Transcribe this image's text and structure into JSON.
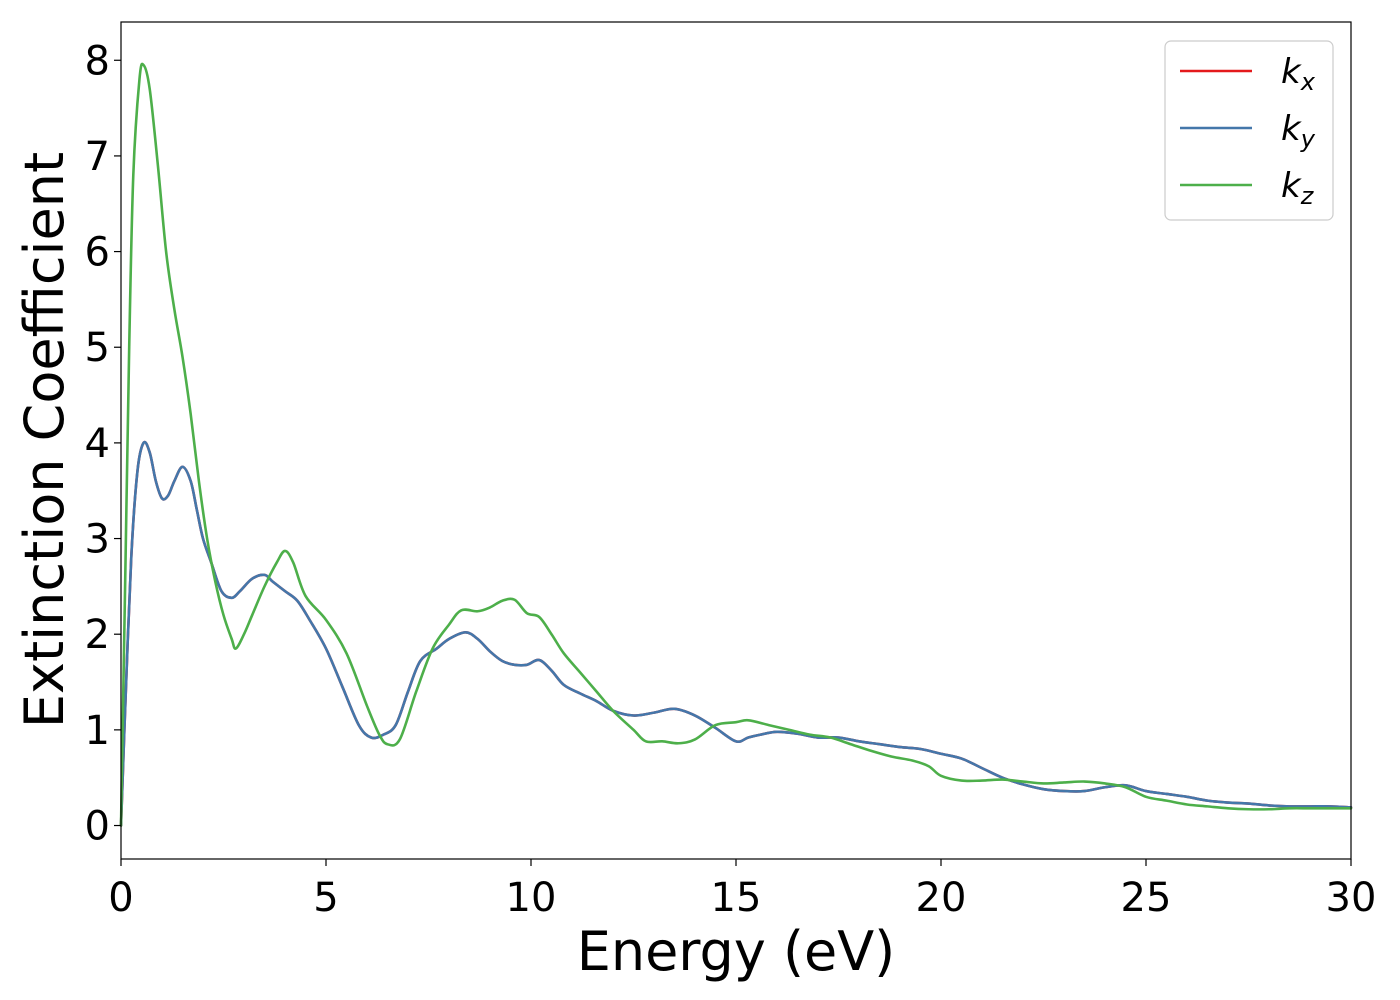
{
  "chart_data": {
    "type": "line",
    "title": "",
    "xlabel": "Energy (eV)",
    "ylabel": "Extinction Coefficient",
    "xlim": [
      0,
      30
    ],
    "ylim": [
      -0.35,
      8.4
    ],
    "xticks": [
      "0",
      "5",
      "10",
      "15",
      "20",
      "25",
      "30"
    ],
    "yticks": [
      "0",
      "1",
      "2",
      "3",
      "4",
      "5",
      "6",
      "7",
      "8"
    ],
    "grid": false,
    "legend_position": "top-right",
    "series": [
      {
        "name": "k_x",
        "legend_main": "k",
        "legend_sub": "x",
        "color": "#e41a1c",
        "x": [
          0,
          0.1,
          0.25,
          0.4,
          0.55,
          0.7,
          0.85,
          1.0,
          1.15,
          1.3,
          1.5,
          1.7,
          1.85,
          2.0,
          2.2,
          2.45,
          2.7,
          2.9,
          3.2,
          3.5,
          3.7,
          4.0,
          4.3,
          4.6,
          5.0,
          5.4,
          5.8,
          6.1,
          6.4,
          6.7,
          7.0,
          7.3,
          7.7,
          8.0,
          8.4,
          8.7,
          9.0,
          9.3,
          9.6,
          9.9,
          10.2,
          10.5,
          10.8,
          11.2,
          11.6,
          12.0,
          12.5,
          13.0,
          13.5,
          14.0,
          14.5,
          15.0,
          15.3,
          15.6,
          16.0,
          16.5,
          17.0,
          17.5,
          18.0,
          18.5,
          19.0,
          19.5,
          20.0,
          20.5,
          21.0,
          21.5,
          22.0,
          22.5,
          23.0,
          23.5,
          24.0,
          24.5,
          25.0,
          25.5,
          26.0,
          26.5,
          27.0,
          27.5,
          28.0,
          28.5,
          29.0,
          29.5,
          30.0
        ],
        "values": [
          0.0,
          1.2,
          2.8,
          3.7,
          4.0,
          3.9,
          3.6,
          3.42,
          3.45,
          3.6,
          3.75,
          3.6,
          3.3,
          3.0,
          2.75,
          2.45,
          2.38,
          2.45,
          2.58,
          2.62,
          2.55,
          2.45,
          2.35,
          2.15,
          1.85,
          1.45,
          1.05,
          0.92,
          0.95,
          1.05,
          1.4,
          1.72,
          1.85,
          1.95,
          2.02,
          1.95,
          1.82,
          1.72,
          1.68,
          1.68,
          1.73,
          1.62,
          1.47,
          1.38,
          1.3,
          1.2,
          1.15,
          1.18,
          1.22,
          1.15,
          1.02,
          0.88,
          0.92,
          0.95,
          0.98,
          0.96,
          0.92,
          0.92,
          0.88,
          0.85,
          0.82,
          0.8,
          0.75,
          0.7,
          0.6,
          0.5,
          0.43,
          0.38,
          0.36,
          0.36,
          0.4,
          0.42,
          0.36,
          0.33,
          0.3,
          0.26,
          0.24,
          0.23,
          0.21,
          0.2,
          0.2,
          0.2,
          0.19
        ]
      },
      {
        "name": "k_y",
        "legend_main": "k",
        "legend_sub": "y",
        "color": "#4477aa",
        "x": [
          0,
          0.1,
          0.25,
          0.4,
          0.55,
          0.7,
          0.85,
          1.0,
          1.15,
          1.3,
          1.5,
          1.7,
          1.85,
          2.0,
          2.2,
          2.45,
          2.7,
          2.9,
          3.2,
          3.5,
          3.7,
          4.0,
          4.3,
          4.6,
          5.0,
          5.4,
          5.8,
          6.1,
          6.4,
          6.7,
          7.0,
          7.3,
          7.7,
          8.0,
          8.4,
          8.7,
          9.0,
          9.3,
          9.6,
          9.9,
          10.2,
          10.5,
          10.8,
          11.2,
          11.6,
          12.0,
          12.5,
          13.0,
          13.5,
          14.0,
          14.5,
          15.0,
          15.3,
          15.6,
          16.0,
          16.5,
          17.0,
          17.5,
          18.0,
          18.5,
          19.0,
          19.5,
          20.0,
          20.5,
          21.0,
          21.5,
          22.0,
          22.5,
          23.0,
          23.5,
          24.0,
          24.5,
          25.0,
          25.5,
          26.0,
          26.5,
          27.0,
          27.5,
          28.0,
          28.5,
          29.0,
          29.5,
          30.0
        ],
        "values": [
          0.0,
          1.2,
          2.8,
          3.7,
          4.0,
          3.9,
          3.6,
          3.42,
          3.45,
          3.6,
          3.75,
          3.6,
          3.3,
          3.0,
          2.75,
          2.45,
          2.38,
          2.45,
          2.58,
          2.62,
          2.55,
          2.45,
          2.35,
          2.15,
          1.85,
          1.45,
          1.05,
          0.92,
          0.95,
          1.05,
          1.4,
          1.72,
          1.85,
          1.95,
          2.02,
          1.95,
          1.82,
          1.72,
          1.68,
          1.68,
          1.73,
          1.62,
          1.47,
          1.38,
          1.3,
          1.2,
          1.15,
          1.18,
          1.22,
          1.15,
          1.02,
          0.88,
          0.92,
          0.95,
          0.98,
          0.96,
          0.92,
          0.92,
          0.88,
          0.85,
          0.82,
          0.8,
          0.75,
          0.7,
          0.6,
          0.5,
          0.43,
          0.38,
          0.36,
          0.36,
          0.4,
          0.42,
          0.36,
          0.33,
          0.3,
          0.26,
          0.24,
          0.23,
          0.21,
          0.2,
          0.2,
          0.2,
          0.19
        ]
      },
      {
        "name": "k_z",
        "legend_main": "k",
        "legend_sub": "z",
        "color": "#4daf4a",
        "x": [
          0,
          0.1,
          0.2,
          0.3,
          0.45,
          0.55,
          0.7,
          0.9,
          1.1,
          1.3,
          1.5,
          1.7,
          1.9,
          2.1,
          2.3,
          2.5,
          2.7,
          2.8,
          3.0,
          3.2,
          3.5,
          3.8,
          4.0,
          4.2,
          4.5,
          5.0,
          5.5,
          6.0,
          6.3,
          6.5,
          6.8,
          7.2,
          7.6,
          8.0,
          8.3,
          8.7,
          9.0,
          9.3,
          9.6,
          9.9,
          10.2,
          10.5,
          10.8,
          11.2,
          11.6,
          12.0,
          12.5,
          12.8,
          13.2,
          13.6,
          14.0,
          14.5,
          15.0,
          15.3,
          15.8,
          16.3,
          16.8,
          17.3,
          17.8,
          18.3,
          18.8,
          19.3,
          19.7,
          20.0,
          20.5,
          21.0,
          21.5,
          22.0,
          22.5,
          23.0,
          23.5,
          24.0,
          24.5,
          25.0,
          25.5,
          26.0,
          26.5,
          27.0,
          27.5,
          28.0,
          28.5,
          29.0,
          29.5,
          30.0
        ],
        "values": [
          0.0,
          2.5,
          5.0,
          6.8,
          7.8,
          7.95,
          7.7,
          6.9,
          6.0,
          5.4,
          4.9,
          4.3,
          3.6,
          3.0,
          2.55,
          2.2,
          1.95,
          1.85,
          2.0,
          2.2,
          2.5,
          2.75,
          2.87,
          2.75,
          2.4,
          2.15,
          1.8,
          1.25,
          0.95,
          0.85,
          0.9,
          1.4,
          1.85,
          2.1,
          2.25,
          2.24,
          2.28,
          2.35,
          2.36,
          2.22,
          2.18,
          2.0,
          1.8,
          1.6,
          1.4,
          1.2,
          1.0,
          0.88,
          0.88,
          0.86,
          0.9,
          1.05,
          1.08,
          1.1,
          1.05,
          1.0,
          0.95,
          0.92,
          0.85,
          0.78,
          0.72,
          0.68,
          0.62,
          0.52,
          0.47,
          0.47,
          0.48,
          0.46,
          0.44,
          0.45,
          0.46,
          0.44,
          0.4,
          0.3,
          0.26,
          0.22,
          0.2,
          0.18,
          0.17,
          0.17,
          0.18,
          0.18,
          0.18,
          0.18
        ]
      }
    ]
  }
}
